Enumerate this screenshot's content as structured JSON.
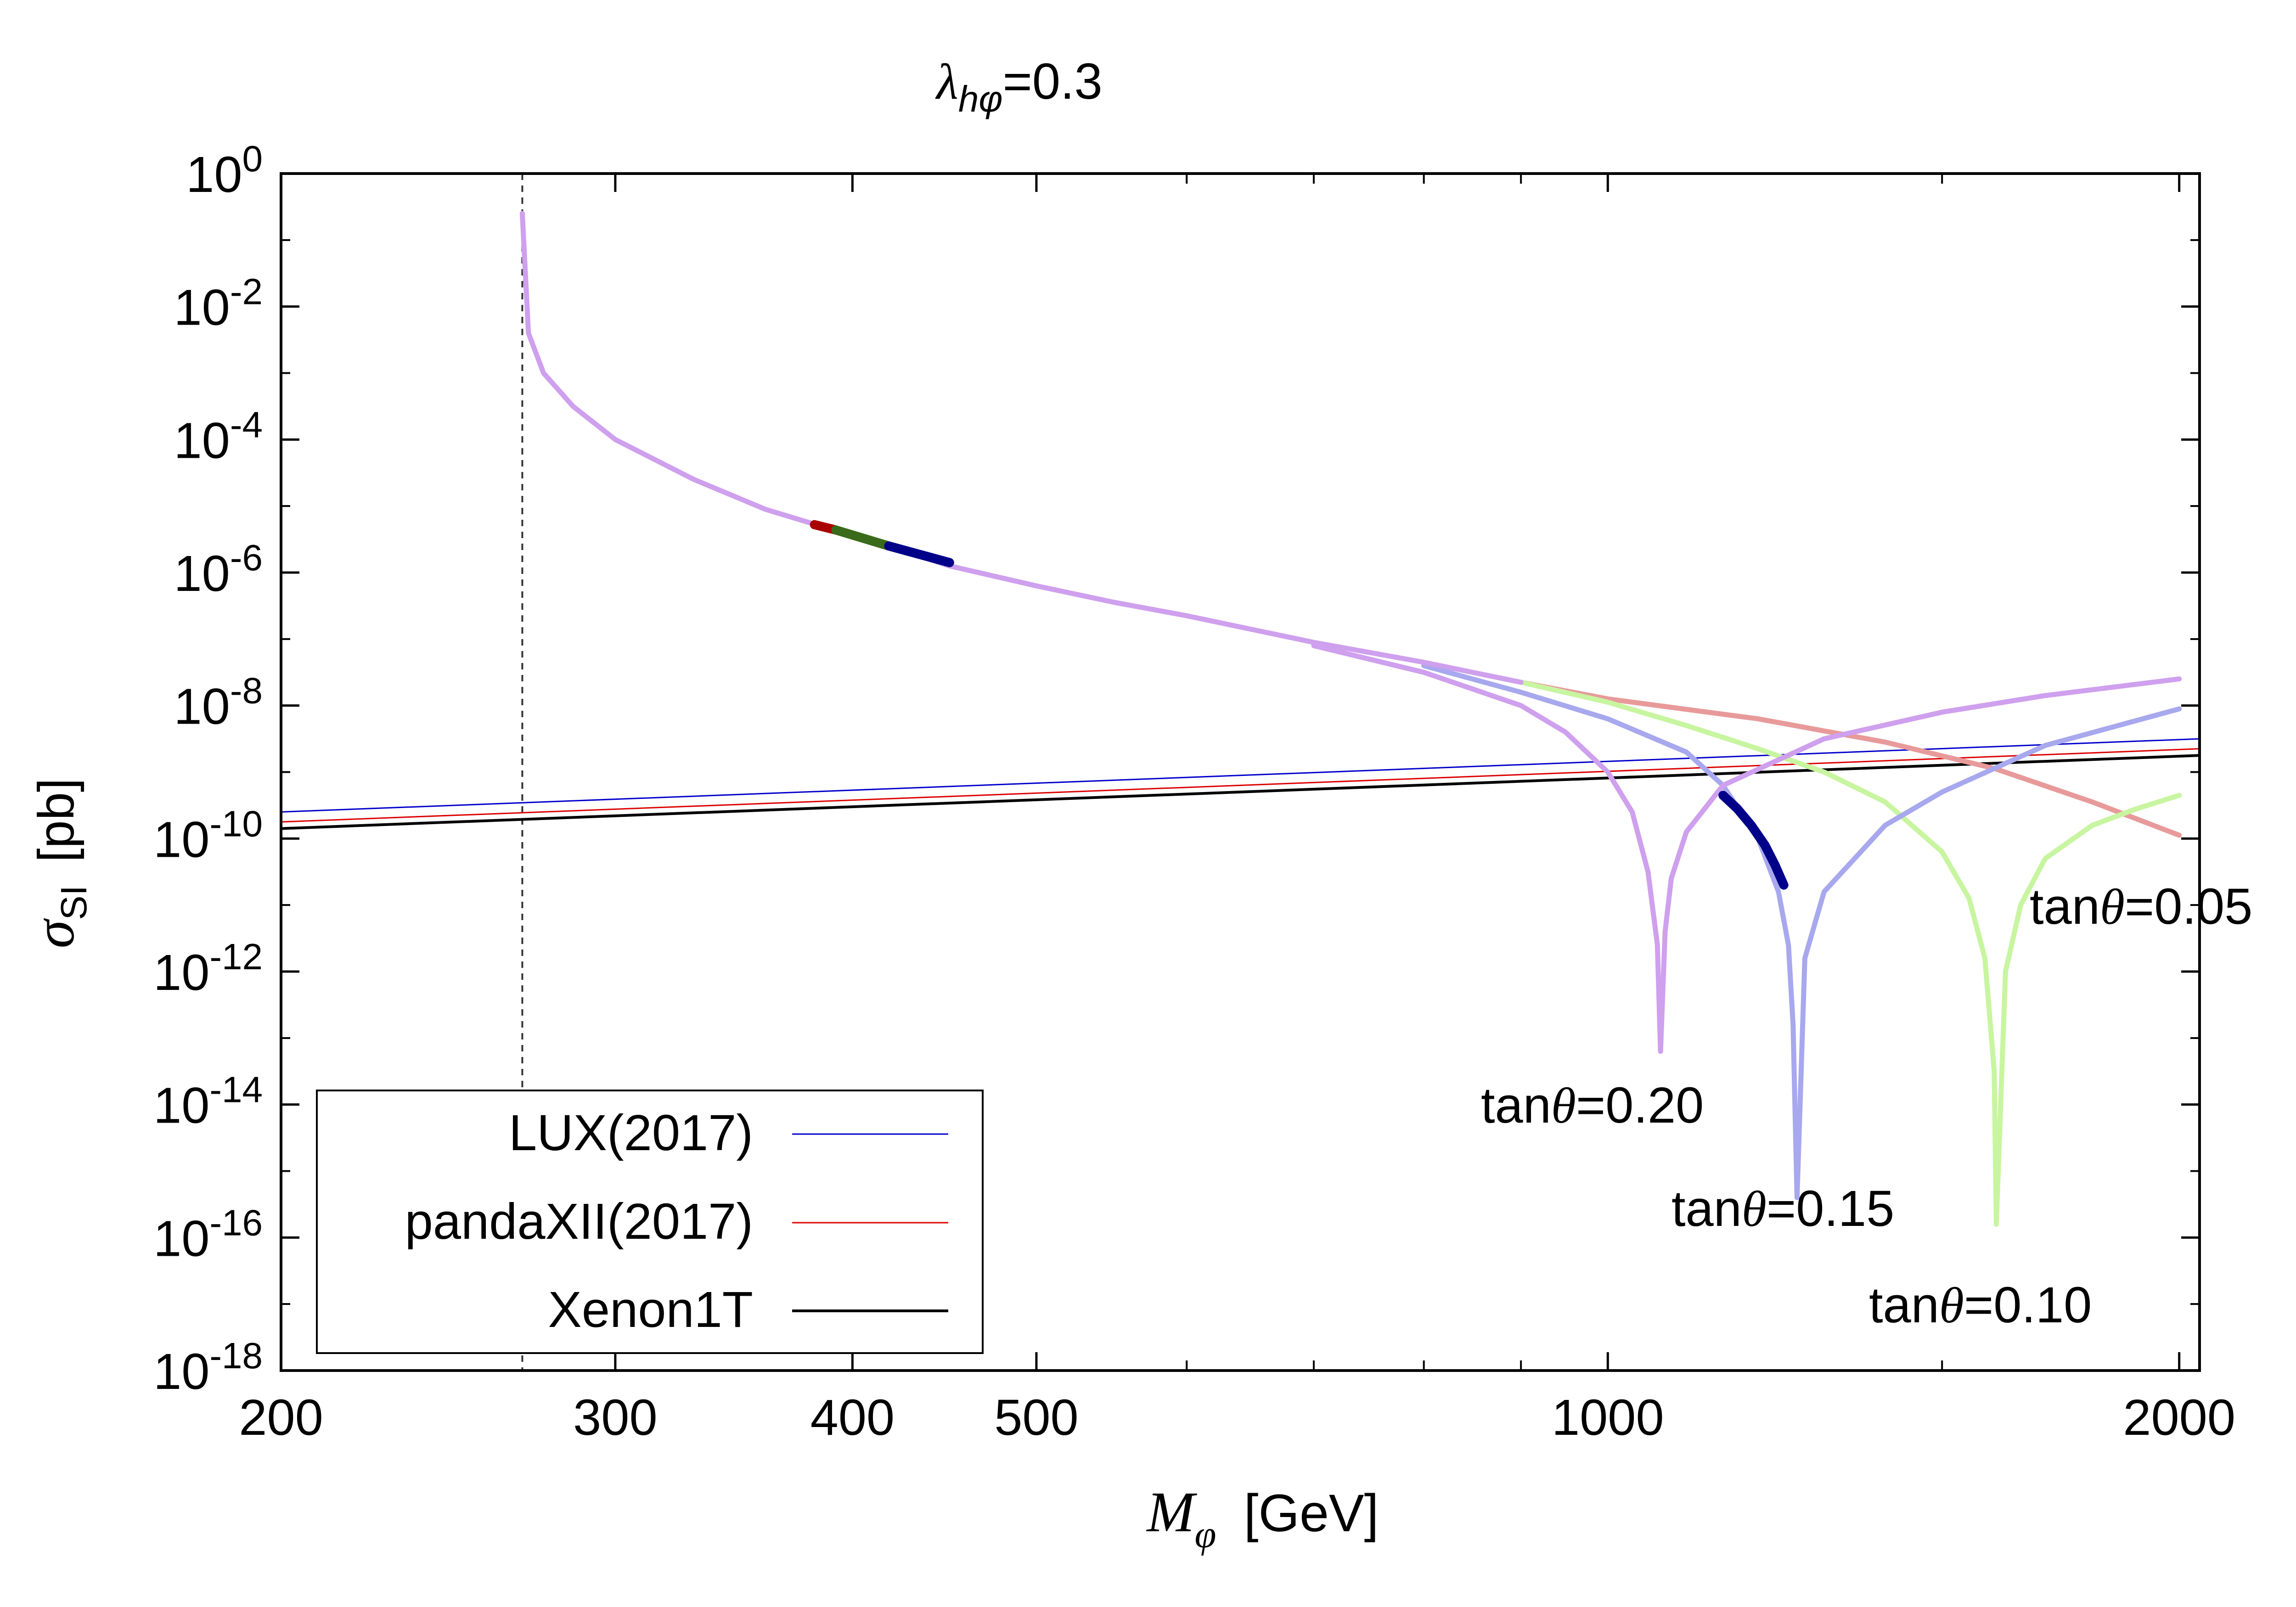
{
  "chart_data": {
    "type": "line",
    "title": {
      "prefix": "λ",
      "sub": "hφ",
      "suffix": "=0.3"
    },
    "xlabel": {
      "symbol": "M",
      "sub": "φ",
      "units": "[GeV]"
    },
    "ylabel": {
      "symbol": "σ",
      "sub": "SI",
      "units": "[pb]"
    },
    "x_scale": "log",
    "y_scale": "log",
    "xlim": [
      200,
      2050
    ],
    "ylim_exponent": [
      -18,
      0
    ],
    "x_ticks": [
      {
        "value": 200,
        "label": "200"
      },
      {
        "value": 300,
        "label": "300"
      },
      {
        "value": 400,
        "label": "400"
      },
      {
        "value": 500,
        "label": "500"
      },
      {
        "value": 1000,
        "label": "1000"
      },
      {
        "value": 2000,
        "label": "2000"
      }
    ],
    "x_minor_ticks": [
      600,
      700,
      800,
      900,
      1500
    ],
    "y_ticks": [
      {
        "exp": 0,
        "base": "10",
        "sup": "0"
      },
      {
        "exp": -2,
        "base": "10",
        "sup": "-2"
      },
      {
        "exp": -4,
        "base": "10",
        "sup": "-4"
      },
      {
        "exp": -6,
        "base": "10",
        "sup": "-6"
      },
      {
        "exp": -8,
        "base": "10",
        "sup": "-8"
      },
      {
        "exp": -10,
        "base": "10",
        "sup": "-10"
      },
      {
        "exp": -12,
        "base": "10",
        "sup": "-12"
      },
      {
        "exp": -14,
        "base": "10",
        "sup": "-14"
      },
      {
        "exp": -16,
        "base": "10",
        "sup": "-16"
      },
      {
        "exp": -18,
        "base": "10",
        "sup": "-18"
      }
    ],
    "vertical_line_x": 268,
    "common_curve": {
      "x": [
        268,
        269,
        270,
        275,
        285,
        300,
        330,
        360,
        390,
        420,
        450,
        500,
        550,
        600,
        700,
        800,
        900
      ],
      "log10y": [
        -0.6,
        -1.5,
        -2.4,
        -3.0,
        -3.5,
        -4.0,
        -4.6,
        -5.05,
        -5.35,
        -5.62,
        -5.9,
        -6.2,
        -6.45,
        -6.65,
        -7.05,
        -7.35,
        -7.65
      ]
    },
    "theory_series": [
      {
        "name": "tanθ=0.05",
        "color": "#e89a9a",
        "label_color": "#cc0000",
        "label": "tanθ=0.05",
        "x": [
          900,
          1000,
          1200,
          1400,
          1600,
          1800,
          2000
        ],
        "log10y": [
          -7.65,
          -7.9,
          -8.2,
          -8.55,
          -8.95,
          -9.45,
          -9.95
        ]
      },
      {
        "name": "tanθ=0.10",
        "color": "#c8f5a0",
        "label_color": "#99ff55",
        "label": "tanθ=0.10",
        "x": [
          900,
          1000,
          1100,
          1200,
          1300,
          1400,
          1500,
          1550,
          1580,
          1598,
          1602,
          1620,
          1650,
          1700,
          1800,
          1900,
          2000
        ],
        "log10y": [
          -7.65,
          -7.95,
          -8.3,
          -8.65,
          -9.0,
          -9.45,
          -10.2,
          -10.9,
          -11.8,
          -13.5,
          -15.8,
          -12.0,
          -11.0,
          -10.3,
          -9.8,
          -9.55,
          -9.35
        ]
      },
      {
        "name": "tanθ=0.15",
        "color": "#a8a8ee",
        "label_color": "#0000cc",
        "label": "tanθ=0.15",
        "x": [
          800,
          900,
          1000,
          1100,
          1150,
          1200,
          1230,
          1245,
          1252,
          1258,
          1270,
          1300,
          1400,
          1500,
          1700,
          2000
        ],
        "log10y": [
          -7.4,
          -7.8,
          -8.2,
          -8.7,
          -9.2,
          -10.0,
          -10.8,
          -11.6,
          -12.8,
          -15.4,
          -11.8,
          -10.8,
          -9.8,
          -9.3,
          -8.6,
          -8.05
        ]
      },
      {
        "name": "tanθ=0.20",
        "color": "#cfa0ee",
        "label_color": "#dd22dd",
        "label": "tanθ=0.20",
        "x": [
          700,
          800,
          900,
          950,
          1000,
          1030,
          1050,
          1062,
          1066,
          1072,
          1080,
          1100,
          1150,
          1300,
          1500,
          1700,
          2000
        ],
        "log10y": [
          -7.1,
          -7.5,
          -8.0,
          -8.4,
          -9.0,
          -9.6,
          -10.5,
          -11.6,
          -13.2,
          -11.4,
          -10.6,
          -9.9,
          -9.2,
          -8.5,
          -8.1,
          -7.85,
          -7.6
        ]
      }
    ],
    "highlights": [
      {
        "name": "tanθ=0.05 allowed",
        "color": "#aa0000",
        "x": [
          382,
          392
        ],
        "log10y": [
          -5.28,
          -5.36
        ]
      },
      {
        "name": "tanθ=0.10 allowed",
        "color": "#3a6b1a",
        "x": [
          392,
          418
        ],
        "log10y": [
          -5.36,
          -5.6
        ]
      },
      {
        "name": "tanθ=0.15 allowed",
        "color": "#000088",
        "x": [
          418,
          450
        ],
        "log10y": [
          -5.6,
          -5.85
        ]
      },
      {
        "name": "tanθ=0.15 allowed (high mass)",
        "color": "#000088",
        "x": [
          1150,
          1170,
          1190,
          1210,
          1225,
          1238
        ],
        "log10y": [
          -9.35,
          -9.55,
          -9.8,
          -10.1,
          -10.4,
          -10.7
        ]
      }
    ],
    "experimental_series": [
      {
        "name": "LUX(2017)",
        "color": "#0000cc",
        "width": 3,
        "x": [
          200,
          2050
        ],
        "log10y": [
          -9.6,
          -8.5
        ]
      },
      {
        "name": "pandaXII(2017)",
        "color": "#dd0000",
        "width": 3,
        "x": [
          200,
          2050
        ],
        "log10y": [
          -9.75,
          -8.65
        ]
      },
      {
        "name": "Xenon1T",
        "color": "#000000",
        "width": 6,
        "x": [
          200,
          2050
        ],
        "log10y": [
          -9.85,
          -8.75
        ]
      }
    ],
    "legend": {
      "placement": "bottom-left",
      "entries": [
        {
          "label": "LUX(2017)",
          "color": "#0000cc",
          "width": 3
        },
        {
          "label": "pandaXII(2017)",
          "color": "#dd0000",
          "width": 3
        },
        {
          "label": "Xenon1T",
          "color": "#000000",
          "width": 6
        }
      ]
    },
    "annotations": [
      {
        "name": "tanθ=0.20",
        "prefix": "tan",
        "theta": "θ",
        "suffix": "=0.20",
        "color": "#dd22dd"
      },
      {
        "name": "tanθ=0.15",
        "prefix": "tan",
        "theta": "θ",
        "suffix": "=0.15",
        "color": "#0000cc"
      },
      {
        "name": "tanθ=0.10",
        "prefix": "tan",
        "theta": "θ",
        "suffix": "=0.10",
        "color": "#99ff55"
      },
      {
        "name": "tanθ=0.05",
        "prefix": "tan",
        "theta": "θ",
        "suffix": "=0.05",
        "color": "#cc0000"
      }
    ]
  }
}
